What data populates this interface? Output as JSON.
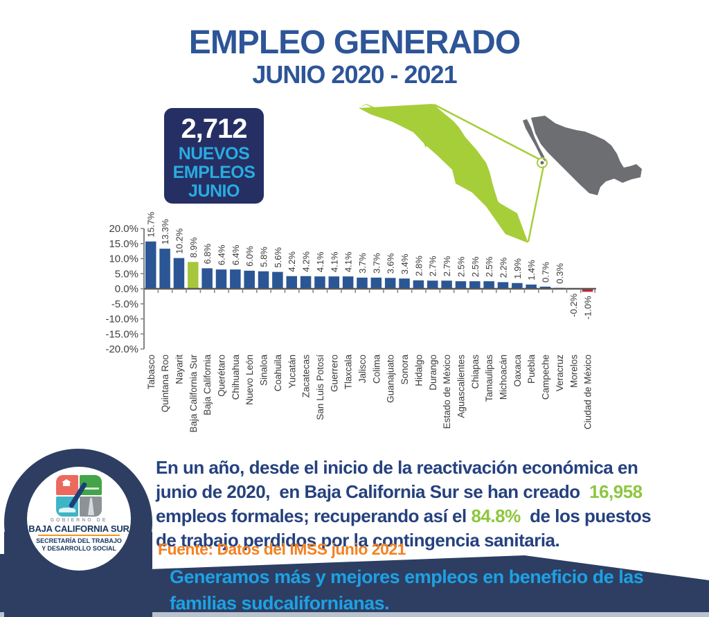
{
  "header": {
    "title": "EMPLEO GENERADO",
    "subtitle": "JUNIO 2020 - 2021"
  },
  "jobs_card": {
    "count": "2,712",
    "lines": [
      "NUEVOS",
      "EMPLEOS",
      "JUNIO"
    ],
    "bg_color": "#252f63",
    "count_color": "#ffffff",
    "label_color": "#29abe2"
  },
  "map": {
    "highlight_region": "Baja California Sur",
    "country": "México",
    "highlight_color": "#a6ce39",
    "country_color": "#6d6e71"
  },
  "chart_data": {
    "type": "bar",
    "title": "",
    "xlabel": "",
    "ylabel": "",
    "unit": "%",
    "ylim": [
      -20,
      20
    ],
    "ytick_labels": [
      "20.0%",
      "15.0%",
      "10.0%",
      "5.0%",
      "0.0%",
      "-5.0%",
      "-10.0%",
      "-15.0%",
      "-20.0%"
    ],
    "grid": false,
    "legend": false,
    "categories": [
      "Tabasco",
      "Quintana Roo",
      "Nayarit",
      "Baja California Sur",
      "Baja California",
      "Querétaro",
      "Chihuahua",
      "Nuevo León",
      "Sinaloa",
      "Coahuila",
      "Yucatán",
      "Zacatecas",
      "San Luis Potosí",
      "Guerrero",
      "Tlaxcala",
      "Jalisco",
      "Colima",
      "Guanajuato",
      "Sonora",
      "Hidalgo",
      "Durango",
      "Estado de México",
      "Aguascalientes",
      "Chiapas",
      "Tamaulipas",
      "Michoacán",
      "Oaxaca",
      "Puebla",
      "Campeche",
      "Veracruz",
      "Morelos",
      "Ciudad de México"
    ],
    "values": [
      15.7,
      13.3,
      10.2,
      8.9,
      6.8,
      6.4,
      6.4,
      6.0,
      5.8,
      5.6,
      4.2,
      4.2,
      4.1,
      4.1,
      4.1,
      3.7,
      3.7,
      3.6,
      3.4,
      2.8,
      2.7,
      2.7,
      2.5,
      2.5,
      2.5,
      2.2,
      1.9,
      1.4,
      0.7,
      0.3,
      -0.2,
      -1.0
    ],
    "bar_color": "#2b5695",
    "color_overrides": {
      "Baja California Sur": "#a6c73c",
      "Ciudad de México": "#c2262e"
    },
    "label_color": "#3a3a3c",
    "axis_color": "#58595b"
  },
  "message": {
    "navy_color": "#25417e",
    "green_color": "#8dc63f",
    "lines": [
      [
        {
          "text": "En un año, desde el inicio de la reactivación económica en",
          "color": "navy"
        }
      ],
      [
        {
          "text": "junio de 2020,  en Baja California Sur se han creado  ",
          "color": "navy"
        },
        {
          "text": "16,958",
          "color": "green"
        }
      ],
      [
        {
          "text": "empleos formales; recuperando así el ",
          "color": "navy"
        },
        {
          "text": "84.8%",
          "color": "green"
        },
        {
          "text": "  de los puestos",
          "color": "navy"
        }
      ],
      [
        {
          "text": "de trabajo perdidos por la contingencia sanitaria.",
          "color": "navy"
        }
      ]
    ]
  },
  "source": {
    "text": "Fuente: Datos del IMSS junio 2021",
    "color": "#f58220"
  },
  "banner": {
    "bg_color": "#2d3e62",
    "text_color": "#1da1e4",
    "lines": [
      "Generamos más y mejores empleos en beneficio de las",
      "familias sudcalifornianas."
    ]
  },
  "logo": {
    "line1": "GOBIERNO DE",
    "line2": "BAJA CALIFORNIA SUR",
    "line3": "SECRETARÍA DEL TRABAJO",
    "line4": "Y DESARROLLO SOCIAL"
  }
}
